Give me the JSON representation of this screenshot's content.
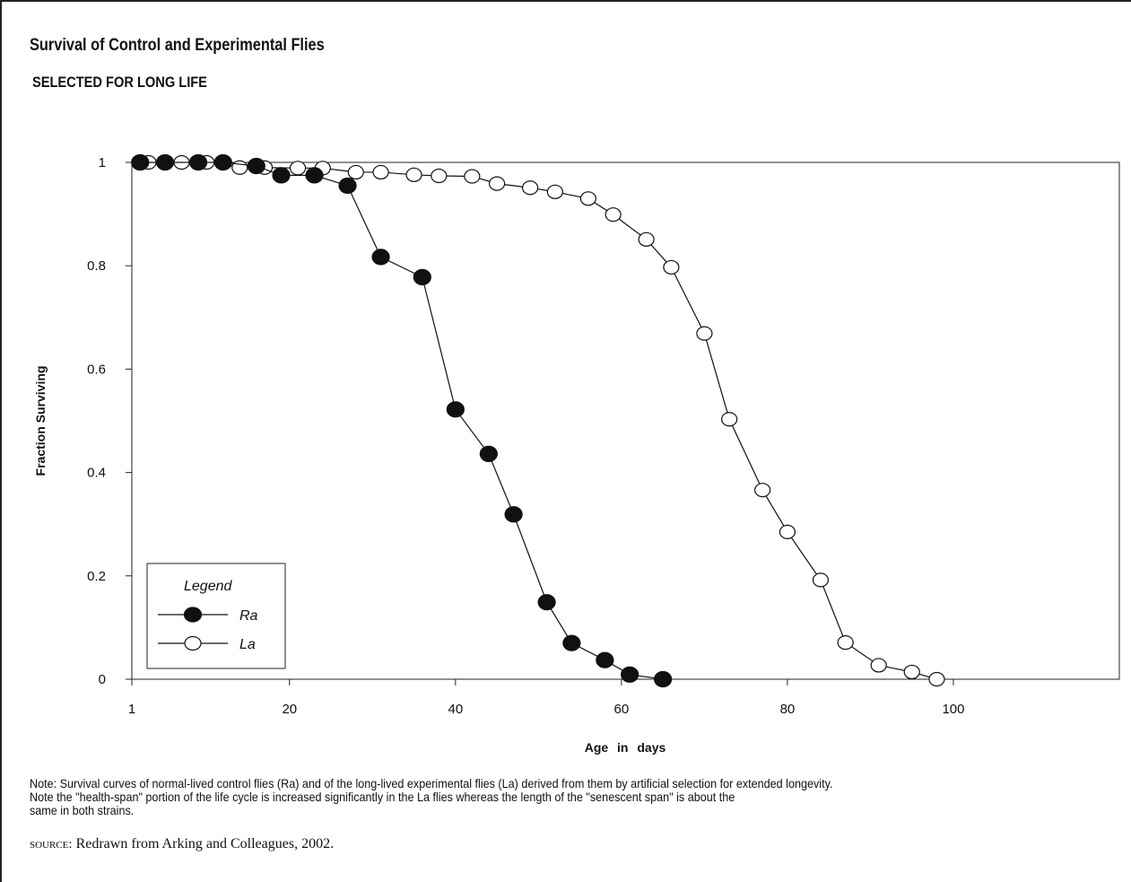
{
  "title": "Survival of Control and Experimental Flies",
  "subtitle": "SELECTED FOR LONG LIFE",
  "chart_data": {
    "type": "line",
    "xlabel": "Age in days",
    "ylabel": "Fraction Surviving",
    "xlim": [
      1,
      120
    ],
    "ylim": [
      0,
      1
    ],
    "x_ticks": [
      1,
      20,
      40,
      60,
      80,
      100
    ],
    "y_ticks": [
      0,
      0.2,
      0.4,
      0.6,
      0.8,
      1
    ],
    "y_tick_labels": [
      "0",
      "0.2",
      "0.4",
      "0.6",
      "0.8",
      "1"
    ],
    "grid": false,
    "legend_title": "Legend",
    "legend_position": "bottom-left",
    "series": [
      {
        "name": "Ra",
        "marker": "filled-circle",
        "color": "#111111",
        "points": [
          [
            2,
            1.0
          ],
          [
            5,
            1.0
          ],
          [
            9,
            1.0
          ],
          [
            12,
            1.0
          ],
          [
            16,
            0.993
          ],
          [
            19,
            0.975
          ],
          [
            23,
            0.975
          ],
          [
            27,
            0.955
          ],
          [
            31,
            0.817
          ],
          [
            36,
            0.778
          ],
          [
            40,
            0.522
          ],
          [
            44,
            0.436
          ],
          [
            47,
            0.319
          ],
          [
            51,
            0.149
          ],
          [
            54,
            0.07
          ],
          [
            58,
            0.037
          ],
          [
            61,
            0.009
          ],
          [
            65,
            0.0
          ]
        ]
      },
      {
        "name": "La",
        "marker": "open-circle",
        "color": "#111111",
        "points": [
          [
            3,
            1.0
          ],
          [
            7,
            1.0
          ],
          [
            10,
            1.0
          ],
          [
            14,
            0.99
          ],
          [
            17,
            0.99
          ],
          [
            21,
            0.989
          ],
          [
            24,
            0.989
          ],
          [
            28,
            0.981
          ],
          [
            31,
            0.981
          ],
          [
            35,
            0.976
          ],
          [
            38,
            0.974
          ],
          [
            42,
            0.973
          ],
          [
            45,
            0.959
          ],
          [
            49,
            0.951
          ],
          [
            52,
            0.943
          ],
          [
            56,
            0.93
          ],
          [
            59,
            0.899
          ],
          [
            63,
            0.851
          ],
          [
            66,
            0.797
          ],
          [
            70,
            0.669
          ],
          [
            73,
            0.503
          ],
          [
            77,
            0.366
          ],
          [
            80,
            0.285
          ],
          [
            84,
            0.192
          ],
          [
            87,
            0.071
          ],
          [
            91,
            0.027
          ],
          [
            95,
            0.014
          ],
          [
            98,
            0.0
          ]
        ]
      }
    ]
  },
  "note_lines": [
    "Note: Survival curves of normal-lived control flies (Ra) and of the long-lived experimental flies (La) derived from them by artificial selection for extended longevity.",
    "Note the \"health-span\" portion of the life cycle is increased significantly in the La flies whereas the length of the \"senescent span\" is about the",
    "same in both strains."
  ],
  "source_label": "source:",
  "source_text": " Redrawn from Arking and Colleagues, 2002."
}
